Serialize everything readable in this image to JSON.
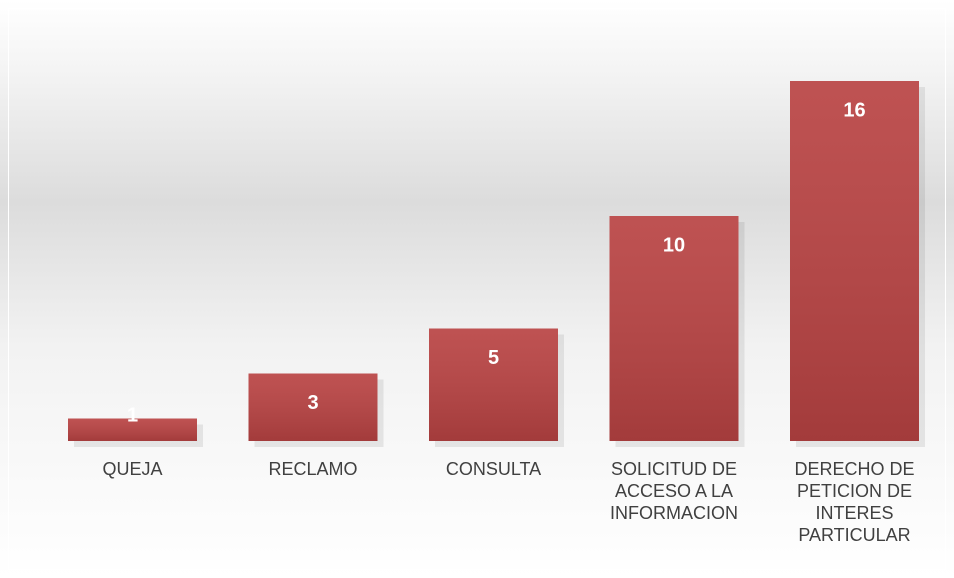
{
  "chart_data": {
    "type": "bar",
    "categories": [
      "QUEJA",
      "RECLAMO",
      "CONSULTA",
      "SOLICITUD DE ACCESO A LA INFORMACION",
      "DERECHO DE PETICION DE INTERES PARTICULAR"
    ],
    "values": [
      1,
      3,
      5,
      10,
      16
    ],
    "color": "#b94343"
  }
}
